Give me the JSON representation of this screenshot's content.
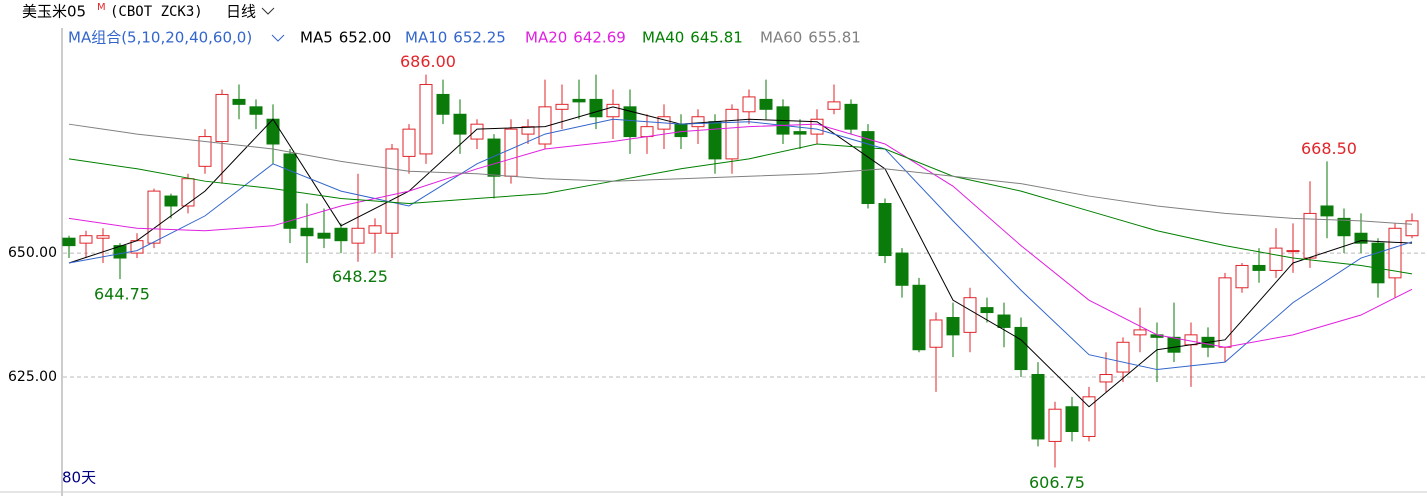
{
  "header": {
    "symbol": "美玉米05",
    "symbol_mark": "M",
    "contract": "(CBOT ZCK3)",
    "period": "日线",
    "ma_group": "MA组合(5,10,20,40,60,0)",
    "span": "80天"
  },
  "chart_data": {
    "type": "candlestick",
    "up_color": "#e0262b",
    "down_color": "#0a7a0a",
    "open": [
      653,
      652,
      653,
      651.5,
      650,
      652,
      661.5,
      659.5,
      667.5,
      672.5,
      681,
      679.5,
      677,
      670,
      655,
      654,
      655,
      652,
      654,
      654,
      669.5,
      670,
      682,
      678,
      673,
      673,
      665.5,
      674,
      672,
      679,
      681,
      681,
      677.5,
      679.5,
      673.5,
      675,
      676,
      675.5,
      676.5,
      669,
      678.5,
      681,
      679.5,
      674.5,
      674,
      679,
      680,
      674.5,
      660,
      650,
      643.5,
      631,
      637,
      634,
      639,
      637.5,
      635,
      625.5,
      612,
      619,
      613,
      624,
      626,
      633.5,
      633.5,
      633,
      631.5,
      633,
      631,
      643,
      647.5,
      646.5,
      650.5,
      649,
      659.5,
      657,
      654,
      652,
      645,
      653.5
    ],
    "high": [
      653.5,
      654.5,
      655,
      652,
      654,
      663,
      662,
      666,
      675,
      683,
      684,
      681,
      680,
      671,
      660,
      659,
      656,
      666,
      657,
      672,
      676,
      686,
      685,
      681,
      677,
      674,
      677,
      677,
      685,
      684,
      685,
      686,
      683,
      683,
      678,
      680,
      678,
      679,
      678,
      680,
      683,
      685,
      681,
      677,
      679,
      684,
      681,
      676,
      661,
      651,
      645,
      638,
      640,
      643,
      641,
      640,
      637,
      628,
      620,
      621,
      623,
      630,
      633,
      639,
      636,
      640,
      636,
      635,
      646,
      648,
      651,
      655,
      656,
      664.5,
      668.5,
      659,
      658,
      653,
      656,
      658
    ],
    "low": [
      649,
      649,
      648,
      644.75,
      649,
      651,
      657,
      658,
      666,
      664,
      677,
      675,
      668,
      652,
      648,
      651,
      650,
      648.25,
      650,
      649,
      666,
      668,
      676,
      670,
      671,
      661,
      664,
      672,
      671,
      675,
      677,
      675,
      673,
      670,
      670,
      671,
      671,
      672,
      666,
      666,
      676,
      677,
      672,
      671,
      672,
      678,
      674,
      659,
      648,
      641,
      630,
      622,
      629,
      630,
      636,
      631,
      625,
      611,
      606.75,
      612,
      612,
      622,
      624,
      630,
      624,
      628,
      623,
      629,
      628,
      642,
      644,
      645,
      646,
      647,
      653,
      650,
      650,
      641,
      641,
      653
    ],
    "close": [
      651.5,
      653.5,
      653.5,
      649,
      652.5,
      662.5,
      659.5,
      665,
      673.5,
      682,
      680,
      678,
      672,
      655,
      653.5,
      653,
      652.5,
      655,
      655.5,
      671,
      675,
      684,
      678,
      674,
      676,
      665.5,
      675,
      675.5,
      679.5,
      680,
      680.5,
      677.5,
      680,
      673.5,
      675.5,
      677.5,
      673.5,
      677.5,
      669,
      679,
      681.5,
      679,
      674,
      674,
      677,
      680.5,
      675,
      660,
      649.5,
      643.5,
      630.5,
      636.5,
      633.5,
      641,
      638,
      635,
      626.5,
      612.5,
      618.5,
      614,
      621,
      625.5,
      632,
      634.5,
      633,
      630,
      633.5,
      631,
      645,
      647.5,
      646.5,
      651,
      650.5,
      658,
      657.5,
      653.5,
      652,
      644,
      655,
      656.5
    ],
    "series": [
      {
        "name": "MA5",
        "color": "#000000",
        "legend_label": "652.00",
        "x": [
          0,
          4,
          8,
          12,
          16,
          20,
          24,
          28,
          32,
          36,
          40,
          44,
          48,
          52,
          56,
          60,
          64,
          68,
          72,
          76,
          79
        ],
        "values": [
          648,
          652.5,
          662.5,
          677,
          655.5,
          662.5,
          675,
          675.5,
          679.5,
          676,
          677,
          676.5,
          667,
          640.5,
          632.5,
          619,
          630.5,
          632.5,
          648,
          652.5,
          652
        ]
      },
      {
        "name": "MA10",
        "color": "#3366cc",
        "legend_label": "652.25",
        "x": [
          0,
          4,
          8,
          12,
          16,
          20,
          24,
          28,
          32,
          36,
          40,
          44,
          48,
          52,
          56,
          60,
          64,
          68,
          72,
          76,
          79
        ],
        "values": [
          648,
          650.5,
          657.5,
          668,
          662.5,
          659.5,
          668,
          674,
          677,
          676,
          676.5,
          675,
          671,
          656.5,
          642.5,
          629.5,
          626.5,
          628,
          640,
          649,
          652.25
        ]
      },
      {
        "name": "MA20",
        "color": "#e020e0",
        "legend_label": "642.69",
        "x": [
          0,
          4,
          8,
          12,
          16,
          20,
          24,
          28,
          32,
          36,
          40,
          44,
          48,
          52,
          56,
          60,
          64,
          68,
          72,
          76,
          79
        ],
        "values": [
          657,
          655,
          654.5,
          655.5,
          659.5,
          662.5,
          667,
          671,
          672.5,
          674.5,
          675.5,
          676,
          672,
          663.5,
          651.5,
          640.5,
          633.5,
          631,
          633.5,
          637.5,
          642.69
        ]
      },
      {
        "name": "MA40",
        "color": "#008000",
        "legend_label": "645.81",
        "x": [
          0,
          4,
          8,
          12,
          16,
          20,
          24,
          28,
          32,
          36,
          40,
          44,
          48,
          52,
          56,
          60,
          64,
          68,
          72,
          76,
          79
        ],
        "values": [
          669,
          667,
          664.5,
          663,
          661,
          660,
          661,
          662,
          664.5,
          667,
          669,
          672,
          671,
          665.5,
          662.5,
          658.5,
          654.5,
          651.5,
          649,
          647.5,
          645.81
        ]
      },
      {
        "name": "MA60",
        "color": "#808080",
        "legend_label": "655.81",
        "x": [
          0,
          4,
          8,
          12,
          16,
          20,
          24,
          28,
          32,
          36,
          40,
          44,
          48,
          52,
          56,
          60,
          64,
          68,
          72,
          76,
          79
        ],
        "values": [
          676,
          674,
          672.5,
          671,
          668.5,
          666.5,
          666,
          665,
          664.5,
          665,
          665.5,
          666,
          667,
          665.5,
          664,
          661.5,
          659.5,
          658,
          657,
          656.5,
          655.81
        ]
      }
    ],
    "annotations": [
      {
        "x": 3,
        "value": 644.75,
        "label": "644.75",
        "color": "#0a7a0a"
      },
      {
        "x": 17,
        "value": 648.25,
        "label": "648.25",
        "color": "#0a7a0a"
      },
      {
        "x": 21,
        "value": 686,
        "label": "686.00",
        "color": "#e0262b"
      },
      {
        "x": 58,
        "value": 606.75,
        "label": "606.75",
        "color": "#0a7a0a"
      },
      {
        "x": 74,
        "value": 668.5,
        "label": "668.50",
        "color": "#e0262b"
      }
    ],
    "ylim": [
      602,
      695
    ],
    "yticks": [
      {
        "value": 625,
        "label": "625.00"
      },
      {
        "value": 650,
        "label": "650.00"
      }
    ],
    "grid": true
  }
}
